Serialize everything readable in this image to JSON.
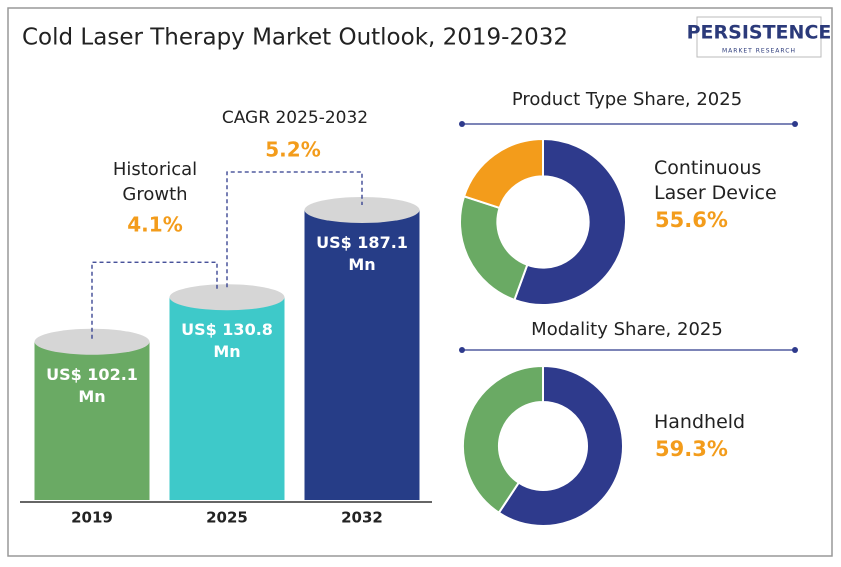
{
  "title": "Cold Laser Therapy Market Outlook, 2019-2032",
  "logo": {
    "name": "PERSISTENCE",
    "tagline": "MARKET RESEARCH"
  },
  "chart_data": [
    {
      "type": "bar",
      "categories": [
        "2019",
        "2025",
        "2032"
      ],
      "values": [
        102.1,
        130.8,
        187.1
      ],
      "value_labels": [
        "US$ 102.1 Mn",
        "US$ 130.8 Mn",
        "US$ 187.1 Mn"
      ],
      "colors": [
        "#6aaa64",
        "#3ec9c9",
        "#263d87"
      ],
      "annotations": [
        {
          "label": "Historical Growth",
          "value": "4.1%"
        },
        {
          "label": "CAGR 2025-2032",
          "value": "5.2%"
        }
      ]
    },
    {
      "type": "pie",
      "title": "Product Type  Share, 2025",
      "categories": [
        "Continuous Laser Device",
        null,
        null
      ],
      "values": [
        55.6,
        24.4,
        20
      ],
      "value_labels": [
        "55.6%",
        null,
        null
      ],
      "colors": [
        "#2e3a8c",
        "#6aaa64",
        "#f39c1b"
      ]
    },
    {
      "type": "pie",
      "title": "Modality  Share, 2025",
      "categories": [
        "Handheld",
        null
      ],
      "values": [
        59.3,
        40.7
      ],
      "value_labels": [
        "59.3%",
        null
      ],
      "colors": [
        "#2e3a8c",
        "#6aaa64"
      ]
    }
  ]
}
